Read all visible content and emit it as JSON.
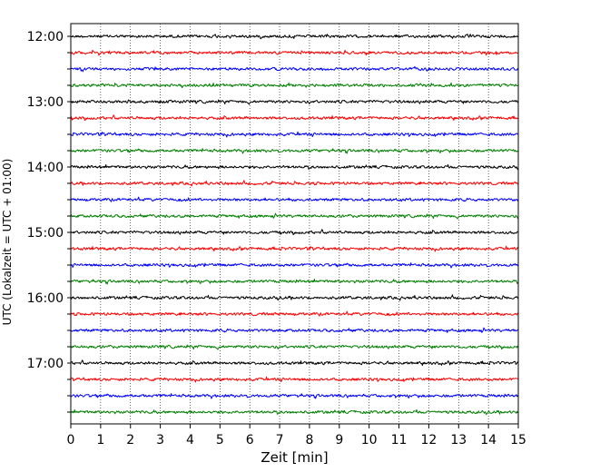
{
  "chart_data": {
    "type": "line",
    "title": "",
    "xlabel": "Zeit  [min]",
    "ylabel": "UTC (Lokalzeit = UTC + 01:00)",
    "xlim": [
      0,
      15
    ],
    "x_ticks": [
      0,
      1,
      2,
      3,
      4,
      5,
      6,
      7,
      8,
      9,
      10,
      11,
      12,
      13,
      14,
      15
    ],
    "y_tick_labels": [
      "12:00",
      "13:00",
      "14:00",
      "15:00",
      "16:00",
      "17:00"
    ],
    "grid": "vertical dotted",
    "traces": [
      {
        "start": "12:00",
        "color": "#000000"
      },
      {
        "start": "12:15",
        "color": "#ff0000"
      },
      {
        "start": "12:30",
        "color": "#0000ff"
      },
      {
        "start": "12:45",
        "color": "#008000"
      },
      {
        "start": "13:00",
        "color": "#000000"
      },
      {
        "start": "13:15",
        "color": "#ff0000"
      },
      {
        "start": "13:30",
        "color": "#0000ff"
      },
      {
        "start": "13:45",
        "color": "#008000"
      },
      {
        "start": "14:00",
        "color": "#000000"
      },
      {
        "start": "14:15",
        "color": "#ff0000"
      },
      {
        "start": "14:30",
        "color": "#0000ff"
      },
      {
        "start": "14:45",
        "color": "#008000"
      },
      {
        "start": "15:00",
        "color": "#000000"
      },
      {
        "start": "15:15",
        "color": "#ff0000"
      },
      {
        "start": "15:30",
        "color": "#0000ff"
      },
      {
        "start": "15:45",
        "color": "#008000"
      },
      {
        "start": "16:00",
        "color": "#000000"
      },
      {
        "start": "16:15",
        "color": "#ff0000"
      },
      {
        "start": "16:30",
        "color": "#0000ff"
      },
      {
        "start": "16:45",
        "color": "#008000"
      },
      {
        "start": "17:00",
        "color": "#000000"
      },
      {
        "start": "17:15",
        "color": "#ff0000"
      },
      {
        "start": "17:30",
        "color": "#0000ff"
      },
      {
        "start": "17:45",
        "color": "#008000"
      }
    ]
  }
}
